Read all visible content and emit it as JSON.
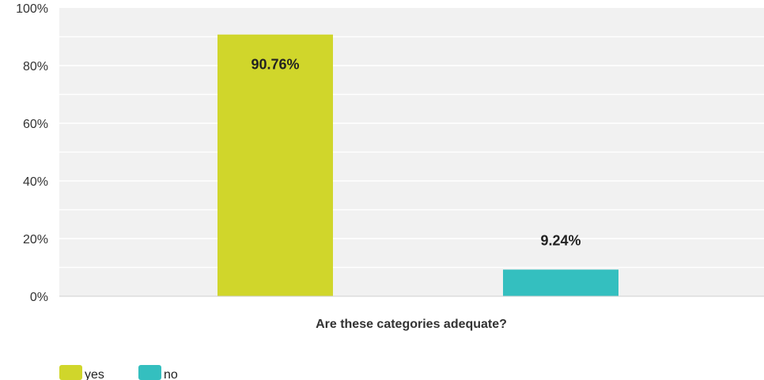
{
  "chart_data": {
    "type": "bar",
    "xlabel": "Are these categories adequate?",
    "ylabel": "",
    "ylim": [
      0,
      100
    ],
    "yticks": [
      "0%",
      "20%",
      "40%",
      "60%",
      "80%",
      "100%"
    ],
    "grid": true,
    "legend_position": "bottom-left",
    "series": [
      {
        "name": "yes",
        "value": 90.76,
        "label": "90.76%",
        "color": "#D0D62B"
      },
      {
        "name": "no",
        "value": 9.24,
        "label": "9.24%",
        "color": "#34BFBF"
      }
    ]
  }
}
